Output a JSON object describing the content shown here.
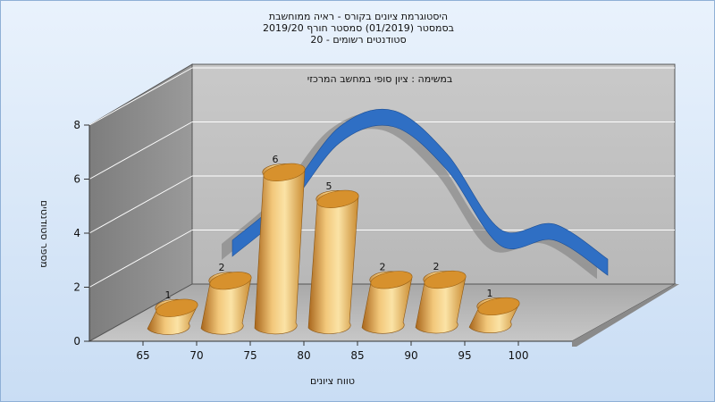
{
  "chart_data": {
    "type": "bar",
    "title": [
      "היסטוגרמת ציונים בקורס - ראיה ממוחשבת",
      "בסמסטר  (01/2019)  סמסטר חורף 2019/20",
      "סטודנטים רשומים - 20"
    ],
    "annotation": "במשימה : ציון סופי במחשב המרכזי",
    "xlabel": "טווח ציונים",
    "ylabel": "מספר סטודנטים",
    "x_ticks": [
      "65",
      "70",
      "75",
      "80",
      "85",
      "90",
      "95",
      "100"
    ],
    "y_ticks": [
      "0",
      "2",
      "4",
      "6",
      "8"
    ],
    "ylim": [
      0,
      8
    ],
    "bar_values": [
      1,
      2,
      6,
      5,
      2,
      2,
      1
    ],
    "bar_labels": [
      "1",
      "2",
      "6",
      "5",
      "2",
      "2",
      "1"
    ],
    "bar_color": "#e8a844",
    "distribution_curve_color": "#2f6fc4",
    "distribution_curve": [
      {
        "x": 70,
        "y": 2.6
      },
      {
        "x": 75,
        "y": 4.3
      },
      {
        "x": 80,
        "y": 6.8
      },
      {
        "x": 85,
        "y": 7.4
      },
      {
        "x": 90,
        "y": 5.8
      },
      {
        "x": 95,
        "y": 3.0
      },
      {
        "x": 100,
        "y": 3.2
      },
      {
        "x": 105,
        "y": 1.9
      }
    ],
    "grid": true,
    "three_d": true
  }
}
